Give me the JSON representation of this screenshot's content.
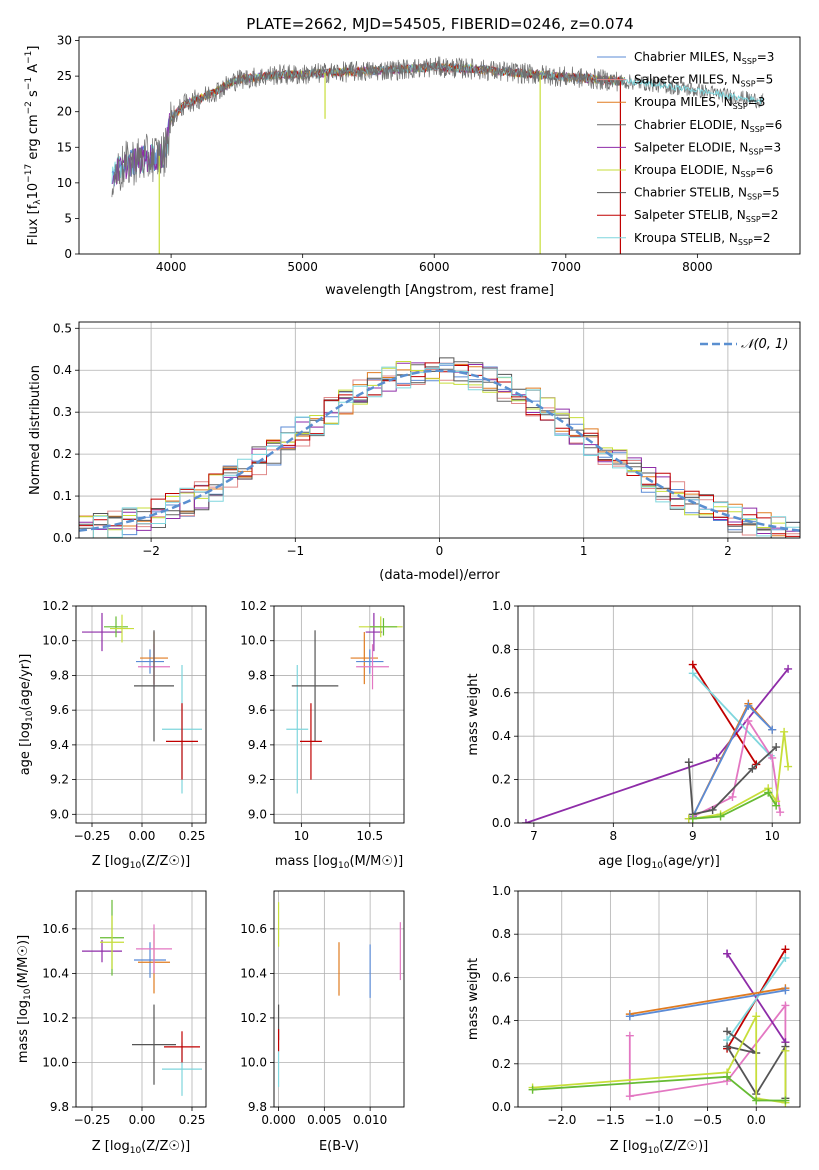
{
  "figure_title": "PLATE=2662, MJD=54505, FIBERID=0246, z=0.074",
  "colors": {
    "chabrier_miles": "#5b8bd6",
    "salpeter_miles": "#e08a8a",
    "kroupa_miles": "#e07b20",
    "chabrier_elodie": "#666666",
    "salpeter_elodie": "#8e2ca8",
    "kroupa_elodie": "#c7de3a",
    "chabrier_stelib": "#555555",
    "salpeter_stelib": "#c00000",
    "kroupa_stelib": "#7fd6dd",
    "pink": "#e377c2",
    "green": "#66bb33",
    "gaussian": "#5a8fd0"
  },
  "chart_data": [
    {
      "id": "spectrum",
      "type": "line",
      "title": "PLATE=2662, MJD=54505, FIBERID=0246, z=0.074",
      "xlabel": "wavelength [Angstrom, rest frame]",
      "ylabel": "Flux [f_λ10^-17 erg cm^-2 s^-1 A^-1]",
      "xlim": [
        3300,
        8780
      ],
      "ylim": [
        0,
        30.5
      ],
      "xticks": [
        4000,
        5000,
        6000,
        7000,
        8000
      ],
      "yticks": [
        0,
        5,
        10,
        15,
        20,
        25,
        30
      ],
      "legend_position": "top-right",
      "legend": [
        {
          "label": "Chabrier MILES, N",
          "sub": "SSP",
          "eq": "=3",
          "color": "#5b8bd6"
        },
        {
          "label": "Salpeter MILES, N",
          "sub": "SSP",
          "eq": "=5",
          "color": "#e08a8a"
        },
        {
          "label": "Kroupa MILES, N",
          "sub": "SSP",
          "eq": "=3",
          "color": "#e07b20"
        },
        {
          "label": "Chabrier ELODIE, N",
          "sub": "SSP",
          "eq": "=6",
          "color": "#666666"
        },
        {
          "label": "Salpeter ELODIE, N",
          "sub": "SSP",
          "eq": "=3",
          "color": "#8e2ca8"
        },
        {
          "label": "Kroupa ELODIE, N",
          "sub": "SSP",
          "eq": "=6",
          "color": "#c7de3a"
        },
        {
          "label": "Chabrier STELIB, N",
          "sub": "SSP",
          "eq": "=5",
          "color": "#555555"
        },
        {
          "label": "Salpeter STELIB, N",
          "sub": "SSP",
          "eq": "=2",
          "color": "#c00000"
        },
        {
          "label": "Kroupa STELIB, N",
          "sub": "SSP",
          "eq": "=2",
          "color": "#7fd6dd"
        }
      ],
      "continuum": {
        "x": [
          3550,
          3700,
          3850,
          3950,
          4000,
          4100,
          4300,
          4500,
          4800,
          5000,
          5200,
          5500,
          5800,
          6000,
          6300,
          6600,
          6800,
          7000,
          7200,
          7400,
          7600,
          7800,
          8000,
          8300,
          8500
        ],
        "y": [
          11,
          13,
          13.5,
          14,
          19,
          21,
          22.5,
          24.5,
          25.2,
          25.2,
          25.5,
          25.7,
          26.0,
          26.3,
          26.0,
          25.5,
          25.2,
          24.9,
          24.6,
          24.3,
          24.0,
          23.5,
          23.0,
          22.0,
          21.5
        ]
      },
      "model_x_range": [
        3990,
        7440
      ],
      "model_drops": [
        {
          "x": 3910,
          "y": 0,
          "color": "#c7de3a"
        },
        {
          "x": 5170,
          "y": 19.0,
          "color": "#c7de3a"
        },
        {
          "x": 6805,
          "y": 0,
          "color": "#c7de3a"
        },
        {
          "x": 7415,
          "y": 0,
          "color": "#c00000"
        }
      ]
    },
    {
      "id": "residuals",
      "type": "line",
      "xlabel": "(data-model)/error",
      "ylabel": "Normed distribution",
      "xlim": [
        -2.5,
        2.5
      ],
      "ylim": [
        0,
        0.515
      ],
      "xticks": [
        -2,
        -1,
        0,
        1,
        2
      ],
      "xtick_labels": [
        "−2",
        "−1",
        "0",
        "1",
        "2"
      ],
      "yticks": [
        0.0,
        0.1,
        0.2,
        0.3,
        0.4,
        0.5
      ],
      "legend_position": "top-right",
      "legend": [
        {
          "label": "N(0,1)",
          "color": "#5a8fd0",
          "style": "dashed"
        }
      ],
      "bin_width": 0.1,
      "hist_start": -2.5,
      "gaussian": {
        "mean": 0,
        "sigma": 1
      }
    },
    {
      "id": "age_vs_Z",
      "type": "scatter",
      "xlabel": "Z [log10(Z/Z☉)]",
      "ylabel": "age [log10(age/yr)]",
      "xlim": [
        -0.33,
        0.32
      ],
      "ylim": [
        8.95,
        10.2
      ],
      "xticks": [
        -0.25,
        0.0,
        0.25
      ],
      "xtick_labels": [
        "−0.25",
        "0.00",
        "0.25"
      ],
      "yticks": [
        9.0,
        9.2,
        9.4,
        9.6,
        9.8,
        10.0,
        10.2
      ],
      "points": [
        {
          "x": -0.2,
          "y": 10.05,
          "xerr": 0.1,
          "yerr": 0.11,
          "color": "#8e2ca8"
        },
        {
          "x": -0.13,
          "y": 10.08,
          "xerr": 0.06,
          "yerr": 0.06,
          "color": "#66bb33"
        },
        {
          "x": -0.1,
          "y": 10.07,
          "xerr": 0.06,
          "yerr": 0.08,
          "color": "#c7de3a"
        },
        {
          "x": 0.04,
          "y": 9.88,
          "xerr": 0.07,
          "yerr": 0.07,
          "color": "#5b8bd6"
        },
        {
          "x": 0.06,
          "y": 9.9,
          "xerr": 0.07,
          "yerr": 0.15,
          "color": "#e07b20"
        },
        {
          "x": 0.06,
          "y": 9.85,
          "xerr": 0.08,
          "yerr": 0.13,
          "color": "#e377c2"
        },
        {
          "x": 0.06,
          "y": 9.74,
          "xerr": 0.1,
          "yerr": 0.32,
          "color": "#555555"
        },
        {
          "x": 0.2,
          "y": 9.49,
          "xerr": 0.1,
          "yerr": 0.37,
          "color": "#7fd6dd"
        },
        {
          "x": 0.2,
          "y": 9.42,
          "xerr": 0.08,
          "yerr": 0.22,
          "color": "#c00000"
        }
      ]
    },
    {
      "id": "age_vs_mass",
      "type": "scatter",
      "xlabel": "mass [log10(M/M☉)]",
      "ylabel": "",
      "xlim": [
        9.8,
        10.75
      ],
      "ylim": [
        8.95,
        10.2
      ],
      "xticks": [
        10.0,
        10.5
      ],
      "yticks": [
        9.0,
        9.2,
        9.4,
        9.6,
        9.8,
        10.0,
        10.2
      ],
      "points": [
        {
          "x": 9.97,
          "y": 9.49,
          "xerr": 0.08,
          "yerr": 0.37,
          "color": "#7fd6dd"
        },
        {
          "x": 10.1,
          "y": 9.74,
          "xerr": 0.17,
          "yerr": 0.32,
          "color": "#555555"
        },
        {
          "x": 10.07,
          "y": 9.42,
          "xerr": 0.08,
          "yerr": 0.22,
          "color": "#c00000"
        },
        {
          "x": 10.46,
          "y": 9.9,
          "xerr": 0.1,
          "yerr": 0.15,
          "color": "#e07b20"
        },
        {
          "x": 10.5,
          "y": 9.88,
          "xerr": 0.1,
          "yerr": 0.07,
          "color": "#5b8bd6"
        },
        {
          "x": 10.52,
          "y": 9.85,
          "xerr": 0.12,
          "yerr": 0.13,
          "color": "#e377c2"
        },
        {
          "x": 10.53,
          "y": 10.05,
          "xerr": 0.06,
          "yerr": 0.11,
          "color": "#8e2ca8"
        },
        {
          "x": 10.58,
          "y": 10.08,
          "xerr": 0.16,
          "yerr": 0.06,
          "color": "#c7de3a"
        },
        {
          "x": 10.6,
          "y": 10.08,
          "xerr": 0.1,
          "yerr": 0.05,
          "color": "#66bb33"
        }
      ]
    },
    {
      "id": "weight_vs_age",
      "type": "line",
      "xlabel": "age [log10(age/yr)]",
      "ylabel": "mass weight",
      "xlim": [
        6.8,
        10.35
      ],
      "ylim": [
        0.0,
        1.0
      ],
      "xticks": [
        7,
        8,
        9,
        10
      ],
      "yticks": [
        0.0,
        0.2,
        0.4,
        0.6,
        0.8,
        1.0
      ],
      "series": [
        {
          "color": "#8e2ca8",
          "x": [
            6.9,
            9.3,
            10.2
          ],
          "y": [
            0.0,
            0.3,
            0.71
          ]
        },
        {
          "color": "#c00000",
          "x": [
            9.0,
            9.8
          ],
          "y": [
            0.73,
            0.27
          ]
        },
        {
          "color": "#7fd6dd",
          "x": [
            9.0,
            9.98
          ],
          "y": [
            0.69,
            0.31
          ]
        },
        {
          "color": "#e07b20",
          "x": [
            9.0,
            9.7,
            10.0
          ],
          "y": [
            0.03,
            0.55,
            0.43
          ]
        },
        {
          "color": "#5b8bd6",
          "x": [
            9.0,
            9.7,
            10.0
          ],
          "y": [
            0.03,
            0.54,
            0.43
          ]
        },
        {
          "color": "#e377c2",
          "x": [
            8.95,
            9.5,
            9.7,
            10.0,
            10.1
          ],
          "y": [
            0.02,
            0.12,
            0.47,
            0.3,
            0.05
          ]
        },
        {
          "color": "#555555",
          "x": [
            8.95,
            9.0,
            9.25,
            9.75,
            10.05
          ],
          "y": [
            0.28,
            0.04,
            0.06,
            0.25,
            0.35
          ]
        },
        {
          "color": "#c7de3a",
          "x": [
            8.95,
            9.0,
            9.35,
            9.95,
            10.05,
            10.15,
            10.2
          ],
          "y": [
            0.02,
            0.02,
            0.04,
            0.16,
            0.1,
            0.42,
            0.26
          ]
        },
        {
          "color": "#66bb33",
          "x": [
            9.0,
            9.35,
            9.95,
            10.05
          ],
          "y": [
            0.02,
            0.03,
            0.14,
            0.08
          ]
        }
      ]
    },
    {
      "id": "mass_vs_Z",
      "type": "scatter",
      "xlabel": "Z [log10(Z/Z☉)]",
      "ylabel": "mass [log10(M/M☉)]",
      "xlim": [
        -0.33,
        0.32
      ],
      "ylim": [
        9.8,
        10.77
      ],
      "xticks": [
        -0.25,
        0.0,
        0.25
      ],
      "xtick_labels": [
        "−0.25",
        "0.00",
        "0.25"
      ],
      "yticks": [
        9.8,
        10.0,
        10.2,
        10.4,
        10.6
      ],
      "points": [
        {
          "x": -0.2,
          "y": 10.5,
          "xerr": 0.1,
          "yerr": 0.05,
          "color": "#8e2ca8"
        },
        {
          "x": -0.15,
          "y": 10.56,
          "xerr": 0.06,
          "yerr": 0.17,
          "color": "#66bb33"
        },
        {
          "x": -0.15,
          "y": 10.54,
          "xerr": 0.06,
          "yerr": 0.12,
          "color": "#c7de3a"
        },
        {
          "x": 0.04,
          "y": 10.46,
          "xerr": 0.08,
          "yerr": 0.08,
          "color": "#5b8bd6"
        },
        {
          "x": 0.06,
          "y": 10.45,
          "xerr": 0.08,
          "yerr": 0.14,
          "color": "#e07b20"
        },
        {
          "x": 0.06,
          "y": 10.51,
          "xerr": 0.09,
          "yerr": 0.11,
          "color": "#e377c2"
        },
        {
          "x": 0.06,
          "y": 10.08,
          "xerr": 0.11,
          "yerr": 0.18,
          "color": "#555555"
        },
        {
          "x": 0.2,
          "y": 9.97,
          "xerr": 0.1,
          "yerr": 0.12,
          "color": "#7fd6dd"
        },
        {
          "x": 0.2,
          "y": 10.07,
          "xerr": 0.09,
          "yerr": 0.07,
          "color": "#c00000"
        }
      ]
    },
    {
      "id": "mass_vs_EBV",
      "type": "scatter",
      "xlabel": "E(B-V)",
      "ylabel": "",
      "xlim": [
        -0.0005,
        0.0137
      ],
      "ylim": [
        9.8,
        10.77
      ],
      "xticks": [
        0.0,
        0.005,
        0.01
      ],
      "xtick_labels": [
        "0.000",
        "0.005",
        "0.010"
      ],
      "yticks": [
        9.8,
        10.0,
        10.2,
        10.4,
        10.6
      ],
      "points": [
        {
          "x": 0.0,
          "y": 10.62,
          "xerr": 0,
          "yerr": 0.1,
          "color": "#c7de3a"
        },
        {
          "x": 0.0,
          "y": 10.18,
          "xerr": 0,
          "yerr": 0.08,
          "color": "#555555"
        },
        {
          "x": 0.0,
          "y": 10.1,
          "xerr": 0,
          "yerr": 0.05,
          "color": "#c00000"
        },
        {
          "x": 0.0,
          "y": 9.97,
          "xerr": 0,
          "yerr": 0.08,
          "color": "#7fd6dd"
        },
        {
          "x": 0.0066,
          "y": 10.42,
          "xerr": 0,
          "yerr": 0.12,
          "color": "#e07b20"
        },
        {
          "x": 0.01,
          "y": 10.41,
          "xerr": 0,
          "yerr": 0.12,
          "color": "#5b8bd6"
        },
        {
          "x": 0.0133,
          "y": 10.5,
          "xerr": 0,
          "yerr": 0.13,
          "color": "#e377c2"
        }
      ]
    },
    {
      "id": "weight_vs_Z",
      "type": "line",
      "xlabel": "Z [log10(Z/Z☉)]",
      "ylabel": "mass weight",
      "xlim": [
        -2.45,
        0.45
      ],
      "ylim": [
        0.0,
        1.0
      ],
      "xticks": [
        -2.0,
        -1.5,
        -1.0,
        -0.5,
        0.0
      ],
      "xtick_labels": [
        "−2.0",
        "−1.5",
        "−1.0",
        "−0.5",
        "0.0"
      ],
      "yticks": [
        0.0,
        0.2,
        0.4,
        0.6,
        0.8,
        1.0
      ],
      "series": [
        {
          "color": "#e377c2",
          "x": [
            -1.3,
            -1.3,
            -0.3,
            0.3,
            0.3
          ],
          "y": [
            0.33,
            0.05,
            0.12,
            0.47,
            0.3
          ]
        },
        {
          "color": "#8e2ca8",
          "x": [
            -0.3,
            -0.3,
            0.3
          ],
          "y": [
            0.71,
            0.71,
            0.3
          ]
        },
        {
          "color": "#c00000",
          "x": [
            -0.3,
            0.3
          ],
          "y": [
            0.27,
            0.73
          ]
        },
        {
          "color": "#7fd6dd",
          "x": [
            -0.3,
            0.3
          ],
          "y": [
            0.31,
            0.69
          ]
        },
        {
          "color": "#e07b20",
          "x": [
            -1.3,
            0.3
          ],
          "y": [
            0.43,
            0.55
          ]
        },
        {
          "color": "#5b8bd6",
          "x": [
            -1.3,
            0.3
          ],
          "y": [
            0.42,
            0.54
          ]
        },
        {
          "color": "#555555",
          "x": [
            -0.3,
            0.0,
            -0.3,
            0.0,
            0.3,
            0.3
          ],
          "y": [
            0.35,
            0.25,
            0.28,
            0.06,
            0.28,
            0.04
          ]
        },
        {
          "color": "#c7de3a",
          "x": [
            -2.3,
            -0.3,
            0.0,
            0.0,
            0.3,
            0.3
          ],
          "y": [
            0.09,
            0.16,
            0.42,
            0.04,
            0.02,
            0.26
          ]
        },
        {
          "color": "#66bb33",
          "x": [
            -2.3,
            -0.3,
            0.0,
            0.3
          ],
          "y": [
            0.08,
            0.14,
            0.03,
            0.03
          ]
        }
      ]
    }
  ]
}
